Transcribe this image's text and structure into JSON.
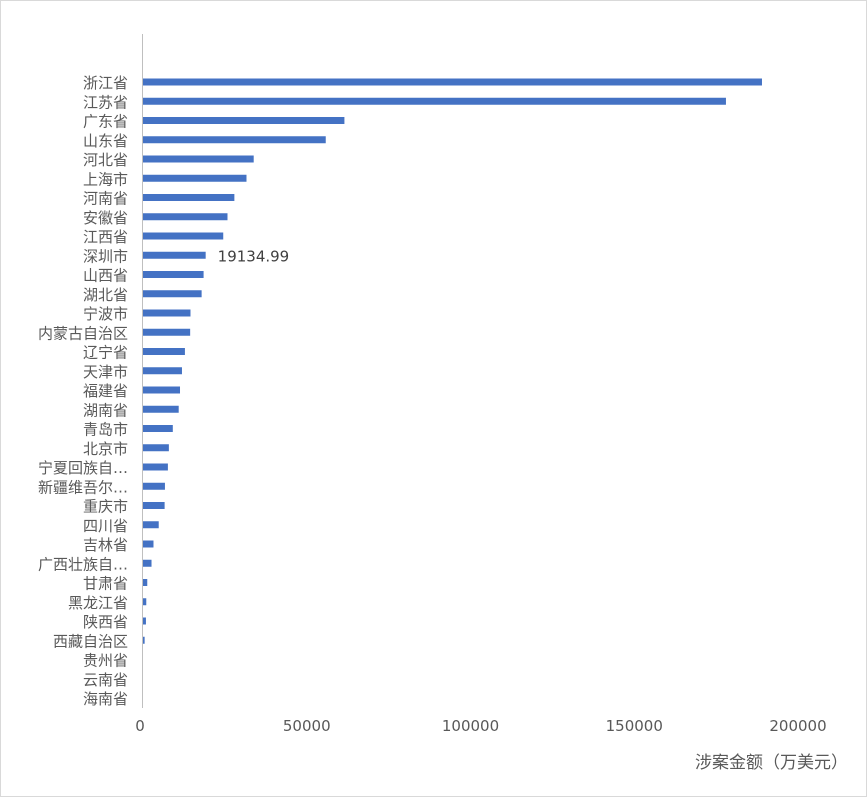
{
  "chart_data": {
    "type": "bar",
    "orientation": "horizontal",
    "title": "",
    "xlabel": "涉案金额（万美元）",
    "ylabel": "",
    "xlim": [
      0,
      200000
    ],
    "xticks": [
      "0",
      "50000",
      "100000",
      "150000",
      "200000"
    ],
    "grid": false,
    "legend": "none",
    "bar_color": "#4472c4",
    "categories": [
      "浙江省",
      "江苏省",
      "广东省",
      "山东省",
      "河北省",
      "上海市",
      "河南省",
      "安徽省",
      "江西省",
      "深圳市",
      "山西省",
      "湖北省",
      "宁波市",
      "内蒙古自治区",
      "辽宁省",
      "天津市",
      "福建省",
      "湖南省",
      "青岛市",
      "北京市",
      "宁夏回族自…",
      "新疆维吾尔…",
      "重庆市",
      "四川省",
      "吉林省",
      "广西壮族自…",
      "甘肃省",
      "黑龙江省",
      "陕西省",
      "西藏自治区",
      "贵州省",
      "云南省",
      "海南省"
    ],
    "values": [
      189000,
      178000,
      61500,
      55800,
      33800,
      31600,
      27900,
      25800,
      24500,
      19134.99,
      18500,
      17900,
      14500,
      14400,
      12800,
      11900,
      11300,
      10900,
      9100,
      7900,
      7600,
      6700,
      6600,
      4800,
      3200,
      2600,
      1300,
      1000,
      900,
      500,
      0,
      0,
      0
    ],
    "data_labels": [
      {
        "index": 9,
        "text": "19134.99"
      }
    ]
  }
}
